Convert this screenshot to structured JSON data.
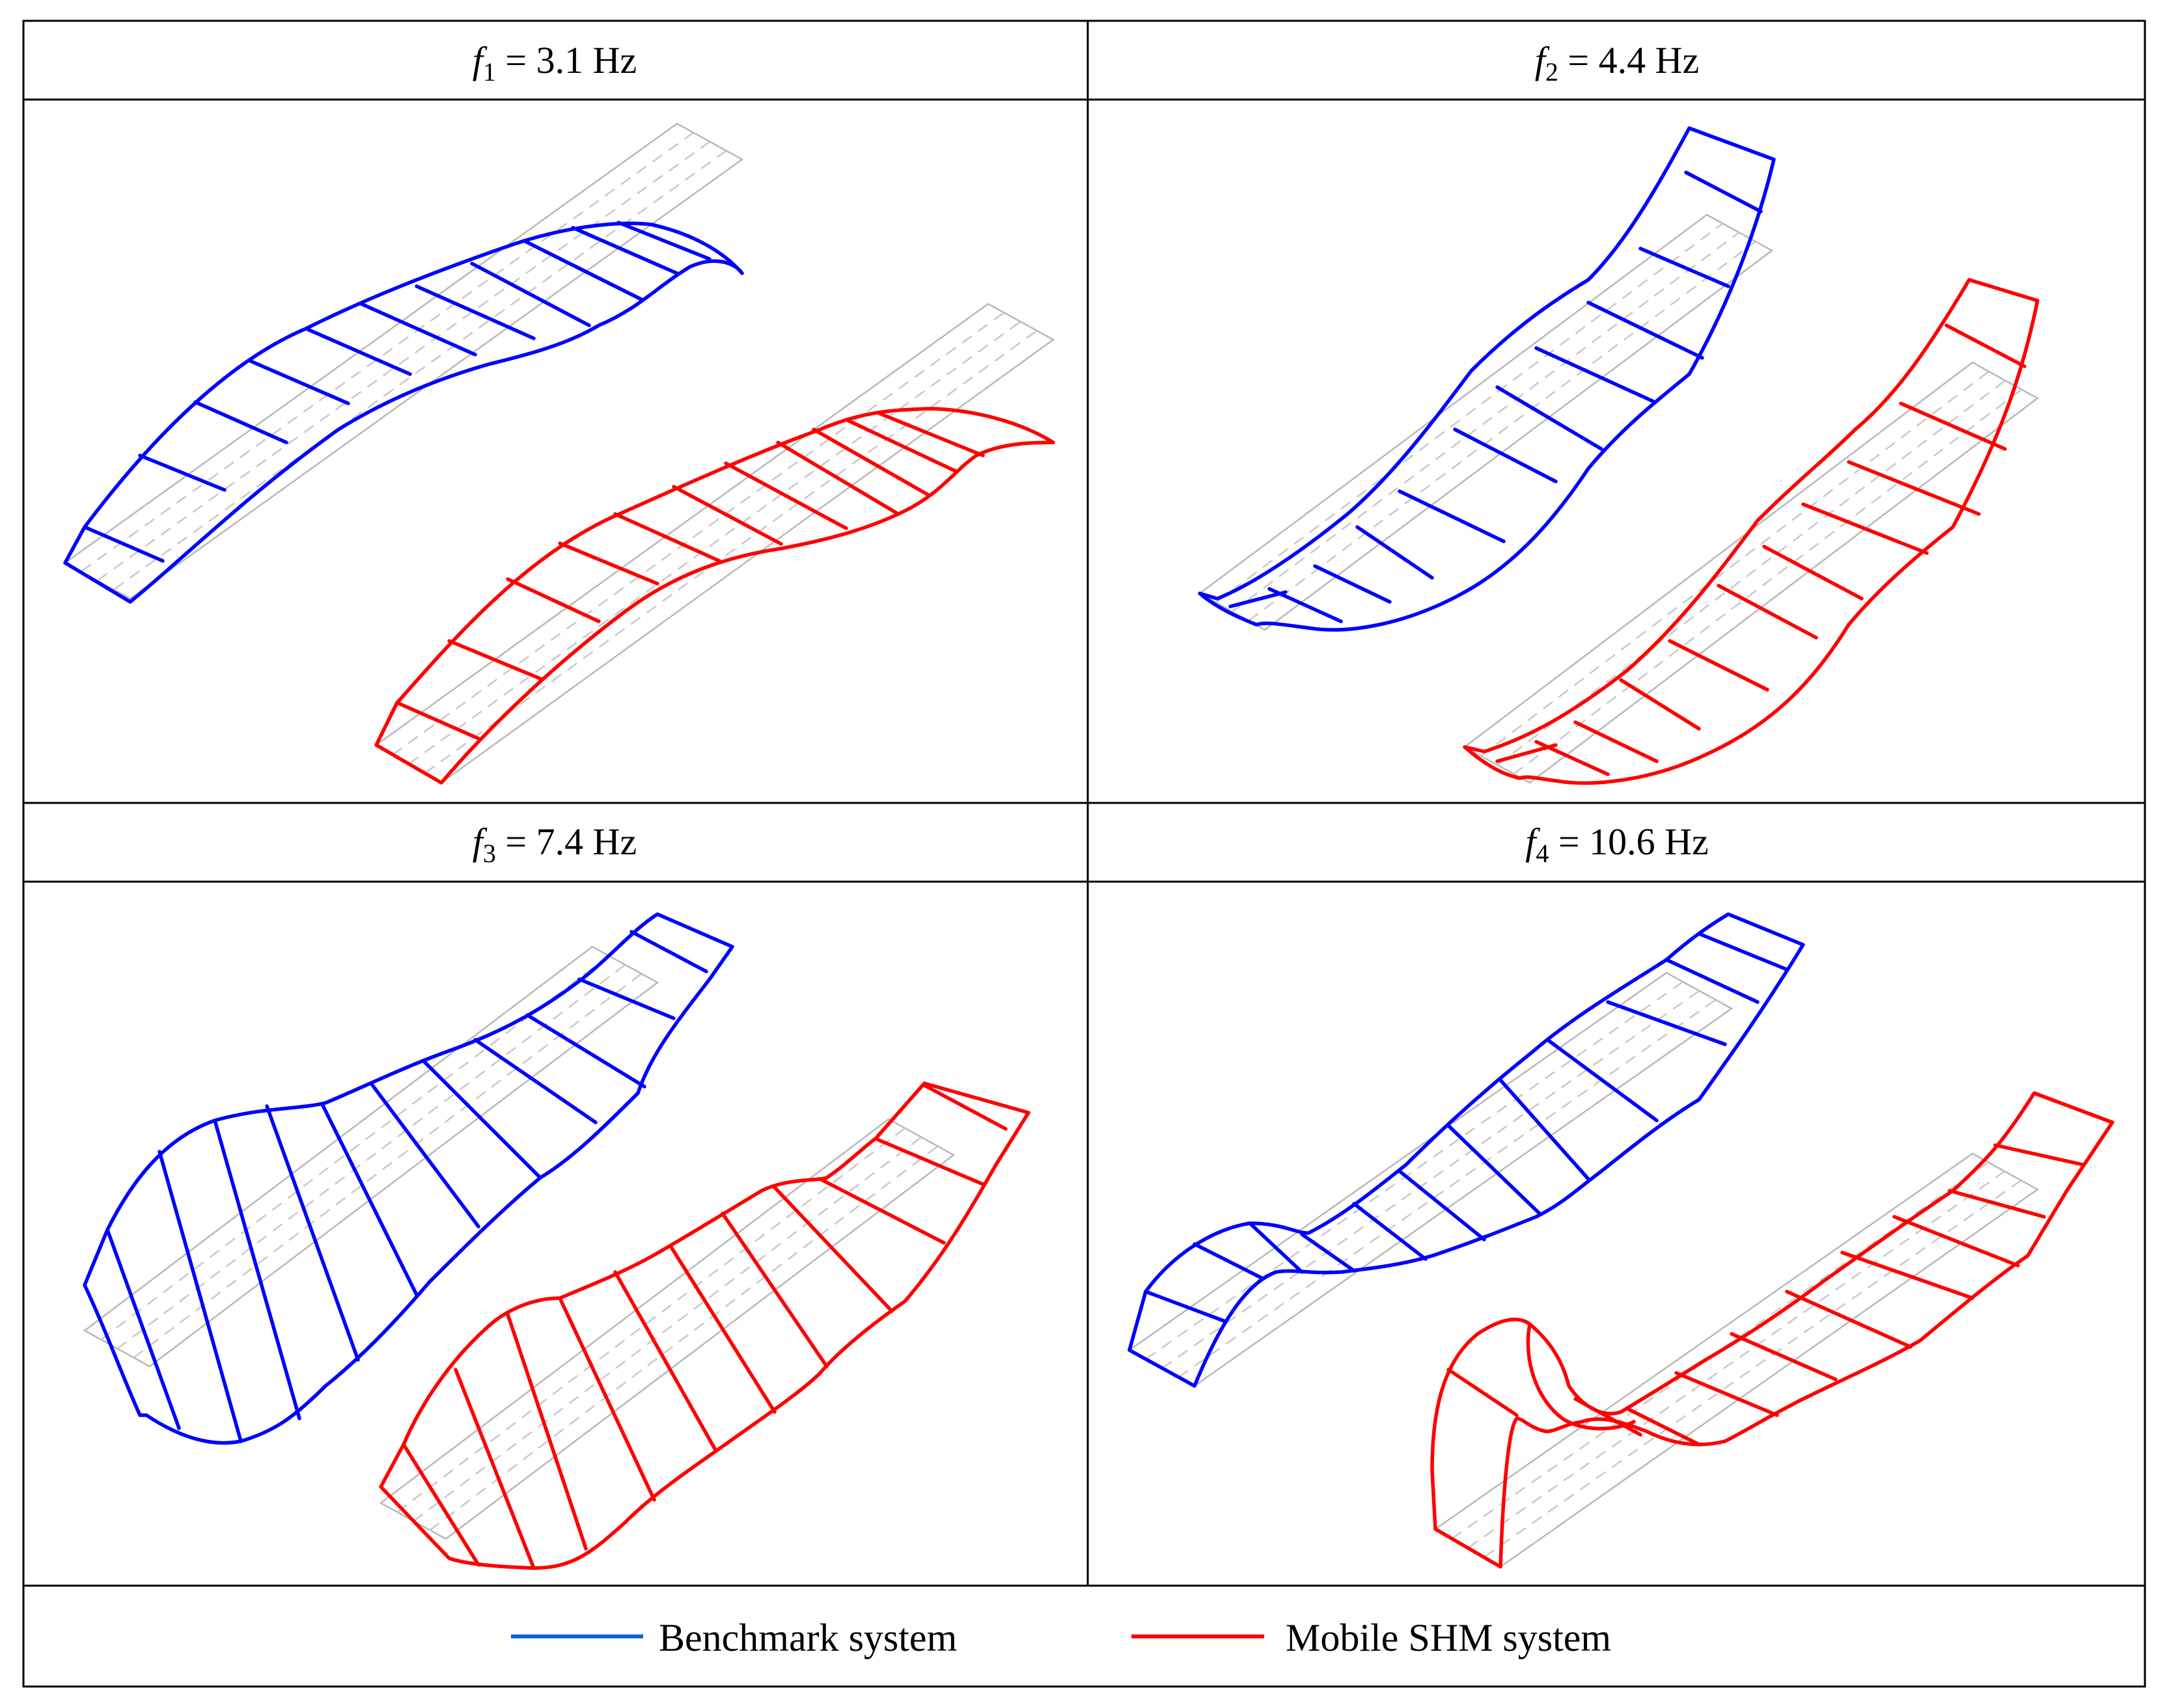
{
  "panels": [
    {
      "symbol": "f",
      "subscript": "1",
      "rest": " = 3.1 Hz"
    },
    {
      "symbol": "f",
      "subscript": "2",
      "rest": " = 4.4 Hz"
    },
    {
      "symbol": "f",
      "subscript": "3",
      "rest": " = 7.4 Hz"
    },
    {
      "symbol": "f",
      "subscript": "4",
      "rest": " = 10.6 Hz"
    }
  ],
  "legend": {
    "benchmark_label": "Benchmark system",
    "mobile_label": "Mobile SHM system"
  },
  "colors": {
    "benchmark": "#0000ff",
    "mobile": "#ff0000",
    "legend_benchmark_line": "#1060d0",
    "undeformed": "#b8b8b8"
  }
}
